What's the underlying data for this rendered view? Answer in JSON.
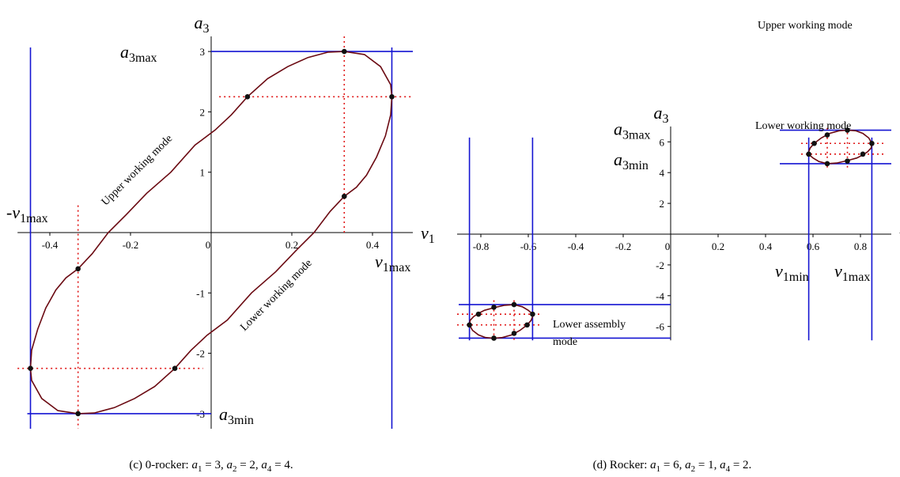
{
  "chart_data": [
    {
      "type": "line",
      "caption": {
        "prefix": "(c) 0-rocker: ",
        "vars": [
          [
            "a",
            "1",
            " = 3, "
          ],
          [
            "a",
            "2",
            " = 2, "
          ],
          [
            "a",
            "4",
            " = 4."
          ]
        ]
      },
      "xlabel": "v",
      "xlabel_sub": "1",
      "ylabel": "a",
      "ylabel_sub": "3",
      "xlim": [
        -0.48,
        0.5
      ],
      "ylim": [
        -3.25,
        3.25
      ],
      "x_ticks": [
        -0.4,
        -0.2,
        0,
        0.2,
        0.4
      ],
      "x_tick_labels": [
        "-0.4",
        "-0.2",
        "0",
        "0.2",
        "0.4"
      ],
      "y_ticks": [
        -3,
        -2,
        -1,
        1,
        2,
        3
      ],
      "y_tick_labels": [
        "-3",
        "-2",
        "-1",
        "1",
        "2",
        "3"
      ],
      "grid": false,
      "curve": {
        "x": [
          0.448,
          0.445,
          0.432,
          0.41,
          0.385,
          0.36,
          0.33,
          0.295,
          0.255,
          0.21,
          0.16,
          0.1,
          0.04,
          -0.01,
          -0.05,
          -0.09,
          -0.14,
          -0.19,
          -0.24,
          -0.29,
          -0.33,
          -0.38,
          -0.42,
          -0.445,
          -0.448,
          -0.445,
          -0.43,
          -0.41,
          -0.385,
          -0.36,
          -0.33,
          -0.295,
          -0.255,
          -0.21,
          -0.16,
          -0.1,
          -0.04,
          0.01,
          0.05,
          0.09,
          0.14,
          0.19,
          0.24,
          0.29,
          0.33,
          0.38,
          0.42,
          0.445,
          0.448
        ],
        "y": [
          2.25,
          1.95,
          1.6,
          1.25,
          0.95,
          0.75,
          0.6,
          0.35,
          0.0,
          -0.3,
          -0.65,
          -1.0,
          -1.45,
          -1.7,
          -1.95,
          -2.25,
          -2.55,
          -2.75,
          -2.9,
          -2.99,
          -3.0,
          -2.95,
          -2.75,
          -2.45,
          -2.25,
          -1.95,
          -1.6,
          -1.25,
          -0.95,
          -0.75,
          -0.6,
          -0.35,
          0.0,
          0.3,
          0.65,
          1.0,
          1.45,
          1.7,
          1.95,
          2.25,
          2.55,
          2.75,
          2.9,
          2.99,
          3.0,
          2.95,
          2.75,
          2.45,
          2.25
        ]
      },
      "points": {
        "x": [
          0.33,
          0.09,
          0.448,
          0.33,
          -0.33,
          -0.09,
          -0.448,
          -0.33
        ],
        "y": [
          3.0,
          2.25,
          2.25,
          0.6,
          -0.6,
          -2.25,
          -2.25,
          -3.0
        ]
      },
      "blue_v": [
        -0.448,
        0.448
      ],
      "blue_h": [
        3.0,
        -3.0
      ],
      "red_v": [
        0.33,
        -0.33
      ],
      "red_h": [
        2.25,
        -2.25
      ],
      "extreme_labels": [
        {
          "base": "a",
          "sub": "3max"
        },
        {
          "base": "a",
          "sub": "3min"
        },
        {
          "base": "-v",
          "sub": "1max"
        },
        {
          "base": "v",
          "sub": "1max"
        }
      ],
      "annotations": [
        "Upper working mode",
        "Lower working mode"
      ],
      "colors": {
        "curve": "#6b0a12",
        "bounds": "#1414d2",
        "dotted": "#e01414",
        "point": "#111111"
      }
    },
    {
      "type": "line",
      "caption": {
        "prefix": "(d) Rocker: ",
        "vars": [
          [
            "a",
            "1",
            " = 6, "
          ],
          [
            "a",
            "2",
            " = 1, "
          ],
          [
            "a",
            "4",
            " = 2."
          ]
        ]
      },
      "xlabel": "v",
      "xlabel_sub": "1",
      "ylabel": "a",
      "ylabel_sub": "3",
      "xlim": [
        -0.9,
        0.93
      ],
      "ylim": [
        -6.9,
        7.0
      ],
      "x_ticks": [
        -0.8,
        -0.6,
        -0.4,
        -0.2,
        0,
        0.2,
        0.4,
        0.6,
        0.8
      ],
      "x_tick_labels": [
        "-0.8",
        "-0.6",
        "-0.4",
        "-0.2",
        "0",
        "0.2",
        "0.4",
        "0.6",
        "0.8"
      ],
      "y_ticks": [
        -6,
        -4,
        -2,
        2,
        4,
        6
      ],
      "y_tick_labels": [
        "-6",
        "-4",
        "-2",
        "2",
        "4",
        "6"
      ],
      "grid": false,
      "loops": [
        {
          "x": [
            0.745,
            0.78,
            0.81,
            0.835,
            0.848,
            0.845,
            0.83,
            0.81,
            0.785,
            0.745,
            0.7,
            0.66,
            0.625,
            0.6,
            0.585,
            0.582,
            0.588,
            0.605,
            0.635,
            0.67,
            0.71,
            0.745
          ],
          "y": [
            6.76,
            6.72,
            6.55,
            6.25,
            5.9,
            5.6,
            5.35,
            5.15,
            4.95,
            4.78,
            4.62,
            4.58,
            4.72,
            4.95,
            5.15,
            5.35,
            5.6,
            5.9,
            6.25,
            6.55,
            6.72,
            6.76
          ]
        },
        {
          "x": [
            -0.745,
            -0.78,
            -0.81,
            -0.835,
            -0.848,
            -0.845,
            -0.83,
            -0.81,
            -0.785,
            -0.745,
            -0.7,
            -0.66,
            -0.625,
            -0.6,
            -0.585,
            -0.582,
            -0.588,
            -0.605,
            -0.635,
            -0.67,
            -0.71,
            -0.745
          ],
          "y": [
            -6.76,
            -6.72,
            -6.55,
            -6.25,
            -5.9,
            -5.6,
            -5.35,
            -5.15,
            -4.95,
            -4.78,
            -4.62,
            -4.58,
            -4.72,
            -4.95,
            -5.15,
            -5.35,
            -5.6,
            -5.9,
            -6.25,
            -6.55,
            -6.72,
            -6.76
          ]
        }
      ],
      "points": {
        "x": [
          0.745,
          0.66,
          0.605,
          0.848,
          0.582,
          0.81,
          0.745,
          0.66,
          -0.745,
          -0.66,
          -0.605,
          -0.848,
          -0.582,
          -0.81,
          -0.745,
          -0.66
        ],
        "y": [
          6.76,
          6.45,
          5.9,
          5.9,
          5.2,
          5.2,
          4.75,
          4.58,
          -6.76,
          -6.45,
          -5.9,
          -5.9,
          -5.2,
          -5.2,
          -4.75,
          -4.58
        ]
      },
      "blue_v": [
        0.582,
        0.848,
        -0.582,
        -0.848
      ],
      "blue_h": [
        6.76,
        4.58,
        -6.76,
        -4.58
      ],
      "red_v": [
        0.66,
        0.745,
        -0.66,
        -0.745
      ],
      "red_h": [
        5.9,
        5.2,
        -5.9,
        -5.2
      ],
      "extreme_labels": [
        {
          "base": "a",
          "sub": "3max"
        },
        {
          "base": "a",
          "sub": "3min"
        },
        {
          "base": "v",
          "sub": "1min"
        },
        {
          "base": "v",
          "sub": "1max"
        }
      ],
      "annotations": [
        "Upper working mode",
        "Lower working mode",
        "Lower assembly",
        "mode"
      ],
      "colors": {
        "curve": "#6b0a12",
        "bounds": "#1414d2",
        "dotted": "#e01414",
        "point": "#111111"
      }
    }
  ]
}
